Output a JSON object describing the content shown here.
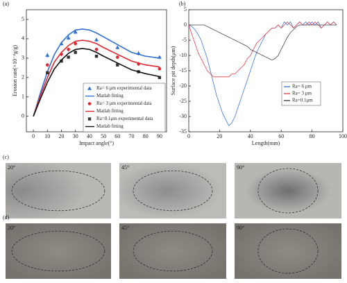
{
  "chart_data": [
    {
      "type": "line",
      "title": "(a)",
      "x_label": "Impact angle(°)",
      "y_label": "Erosion rate(×10⁻⁴g/g)",
      "xlim": [
        -5,
        95
      ],
      "xticks": [
        0,
        10,
        20,
        30,
        40,
        50,
        60,
        70,
        80,
        90
      ],
      "ylim": [
        -0.8,
        5.5
      ],
      "yticks": [
        0,
        1,
        2,
        3,
        4,
        5
      ],
      "legend": "lower right",
      "series": [
        {
          "name": "Ra=  6 μm experimental data",
          "color": "#2f6fd6",
          "marker": "triangle",
          "x": [
            10,
            20,
            25,
            30,
            45,
            60,
            75,
            90
          ],
          "values": [
            3.15,
            3.75,
            4.05,
            4.35,
            3.95,
            3.55,
            3.25,
            3.05
          ],
          "errors": [
            0.12,
            0.1,
            0.12,
            0.1,
            0.1,
            0.1,
            0.12,
            0.1
          ]
        },
        {
          "name": "Matlab fitting",
          "color": "#2f6fd6",
          "x": [
            0,
            5,
            10,
            15,
            20,
            25,
            30,
            35,
            40,
            45,
            50,
            60,
            70,
            80,
            90
          ],
          "values": [
            0,
            1.2,
            2.3,
            3.2,
            3.8,
            4.2,
            4.45,
            4.5,
            4.45,
            4.3,
            4.1,
            3.7,
            3.3,
            3.1,
            3.0
          ]
        },
        {
          "name": "Ra=  3 μm experimental data",
          "color": "#e0262e",
          "marker": "circle",
          "x": [
            10,
            20,
            25,
            30,
            45,
            60,
            75,
            90
          ],
          "values": [
            2.65,
            3.2,
            3.45,
            3.75,
            3.45,
            3.05,
            2.7,
            2.45
          ],
          "errors": [
            0.1,
            0.1,
            0.1,
            0.1,
            0.1,
            0.1,
            0.1,
            0.08
          ]
        },
        {
          "name": "Matlab fitting",
          "color": "#e0262e",
          "x": [
            0,
            5,
            10,
            15,
            20,
            25,
            30,
            35,
            40,
            45,
            50,
            60,
            70,
            80,
            90
          ],
          "values": [
            0,
            1.05,
            2.0,
            2.8,
            3.3,
            3.65,
            3.87,
            3.92,
            3.87,
            3.75,
            3.55,
            3.2,
            2.85,
            2.65,
            2.55
          ]
        },
        {
          "name": "Ra=0.1μm experimental data",
          "color": "#333333",
          "marker": "square",
          "x": [
            10,
            20,
            25,
            30,
            45,
            60,
            75,
            90
          ],
          "values": [
            2.25,
            2.85,
            3.05,
            3.3,
            3.1,
            2.65,
            2.3,
            2.0
          ],
          "errors": [
            0.08,
            0.08,
            0.08,
            0.1,
            0.08,
            0.08,
            0.08,
            0.06
          ]
        },
        {
          "name": "Matlab fitting",
          "color": "#111111",
          "x": [
            0,
            5,
            10,
            15,
            20,
            25,
            30,
            35,
            40,
            45,
            50,
            60,
            70,
            80,
            90
          ],
          "values": [
            0,
            0.9,
            1.75,
            2.45,
            2.9,
            3.25,
            3.45,
            3.5,
            3.45,
            3.3,
            3.1,
            2.75,
            2.4,
            2.2,
            2.05
          ]
        }
      ]
    },
    {
      "type": "line",
      "title": "(b)",
      "x_label": "Length(mm)",
      "y_label": "Surface pit depth(μm)",
      "xlim": [
        0,
        100
      ],
      "xticks": [
        0,
        20,
        40,
        60,
        80,
        100
      ],
      "ylim": [
        -35,
        5
      ],
      "yticks": [
        -35,
        -30,
        -25,
        -20,
        -15,
        -10,
        -5,
        0,
        5
      ],
      "legend": "center right",
      "x": [
        0,
        2,
        4,
        6,
        8,
        10,
        12,
        14,
        16,
        18,
        20,
        22,
        24,
        26,
        28,
        30,
        32,
        34,
        36,
        38,
        40,
        42,
        44,
        46,
        48,
        50,
        52,
        54,
        56,
        58,
        60,
        62,
        64,
        66,
        68,
        70,
        72,
        74,
        76,
        78,
        80,
        82,
        84,
        86,
        88,
        90,
        92,
        94,
        96
      ],
      "series": [
        {
          "name": "Ra=  6 μm",
          "color": "#3a78dc",
          "values": [
            0,
            -0.5,
            -1.5,
            -3,
            -5,
            -8,
            -11,
            -15,
            -19,
            -23,
            -26,
            -29,
            -31,
            -33,
            -32,
            -30,
            -27,
            -24,
            -21,
            -18,
            -15,
            -12,
            -9,
            -7,
            -5,
            -3,
            -2,
            -1,
            -1,
            0,
            -1,
            1,
            0,
            1,
            -1,
            0,
            1,
            0,
            1,
            0,
            1,
            0,
            1,
            -1,
            0,
            1,
            0,
            1,
            0
          ]
        },
        {
          "name": "Ra=  3 μm",
          "color": "#e8404a",
          "values": [
            0,
            -3,
            -6,
            -9,
            -11,
            -13,
            -15,
            -16,
            -17,
            -17,
            -17,
            -17,
            -17,
            -17,
            -16,
            -16,
            -15,
            -14,
            -13,
            -11,
            -10,
            -8,
            -6,
            -5,
            -4,
            -3,
            -2,
            -1,
            -1,
            0,
            -1,
            0,
            1,
            0,
            -1,
            0,
            1,
            0,
            0,
            1,
            0,
            1,
            0,
            -1,
            0,
            1,
            0,
            1,
            0
          ]
        },
        {
          "name": "Ra=0.1μm",
          "color": "#444444",
          "values": [
            0,
            0,
            0,
            0,
            0,
            0,
            -0.5,
            -1,
            -1.5,
            -2,
            -2.5,
            -3,
            -3.5,
            -4,
            -4.5,
            -5,
            -5.5,
            -6,
            -6.5,
            -7,
            -8,
            -8.5,
            -9,
            -9.5,
            -10,
            -10.5,
            -11,
            -11.5,
            -11,
            -10,
            -8,
            -6,
            -4,
            -2.5,
            -1.5,
            -0.5,
            0,
            0,
            0,
            0,
            0,
            0,
            0,
            0,
            0,
            0,
            0,
            0,
            0
          ]
        }
      ]
    }
  ],
  "photos": {
    "rows": [
      {
        "label": "(c)",
        "panels": [
          "20°",
          "45°",
          "90°"
        ]
      },
      {
        "label": "(d)",
        "panels": [
          "20°",
          "45°",
          "90°"
        ]
      }
    ]
  }
}
